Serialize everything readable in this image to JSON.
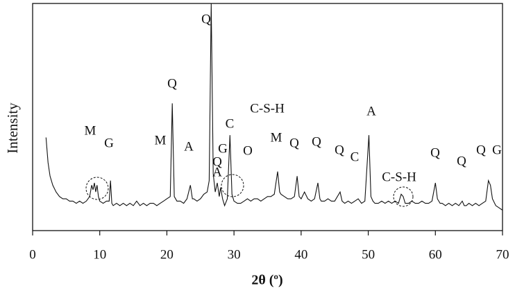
{
  "chart_data": {
    "type": "line",
    "x_label": "2θ (º)",
    "y_label": "Intensity",
    "x": [
      2,
      2.3,
      2.6,
      3,
      3.5,
      4,
      4.5,
      5,
      5.5,
      6,
      6.5,
      7,
      7.5,
      8,
      8.5,
      8.8,
      9,
      9.2,
      9.4,
      9.6,
      9.8,
      10,
      10.5,
      11,
      11.4,
      11.6,
      11.8,
      12,
      12.5,
      13,
      13.5,
      14,
      14.5,
      15,
      15.5,
      16,
      16.5,
      17,
      17.5,
      18,
      18.5,
      19,
      19.5,
      20,
      20.5,
      20.8,
      21.1,
      21.5,
      22,
      22.5,
      23,
      23.5,
      23.8,
      24,
      24.5,
      25,
      25.5,
      26,
      26.3,
      26.6,
      26.9,
      27.2,
      27.5,
      27.8,
      28,
      28.3,
      28.6,
      29,
      29.4,
      29.7,
      30,
      30.5,
      31,
      31.5,
      32,
      32.5,
      33,
      33.5,
      34,
      34.5,
      35,
      35.5,
      36,
      36.5,
      36.8,
      37,
      37.5,
      38,
      38.5,
      39,
      39.4,
      39.7,
      40,
      40.5,
      41,
      41.5,
      42,
      42.5,
      42.8,
      43,
      43.5,
      44,
      44.5,
      45,
      45.8,
      46.1,
      46.5,
      47,
      47.5,
      48,
      48.5,
      49,
      49.5,
      50.1,
      50.4,
      50.7,
      51,
      51.5,
      52,
      52.5,
      53,
      53.5,
      54,
      54.5,
      54.9,
      55.2,
      55.5,
      56,
      56.5,
      57,
      57.5,
      58,
      58.5,
      59,
      59.5,
      60,
      60.3,
      60.7,
      61,
      61.5,
      62,
      62.5,
      63,
      63.5,
      64,
      64.3,
      64.6,
      65,
      65.5,
      66,
      66.5,
      67,
      67.5,
      67.9,
      68.2,
      68.5,
      69,
      69.5,
      70
    ],
    "series": [
      {
        "color": "#111111",
        "values": [
          41,
          30,
          24,
          20,
          17,
          15,
          14,
          14,
          13,
          13,
          12,
          13,
          12,
          13,
          15,
          20,
          18,
          21,
          17,
          20,
          15,
          13,
          12,
          13,
          13,
          22,
          12,
          11,
          12,
          11,
          12,
          11,
          12,
          11,
          13,
          11,
          12,
          11,
          12,
          12,
          11,
          12,
          13,
          14,
          15,
          56,
          15,
          13,
          13,
          12,
          14,
          20,
          14,
          14,
          13,
          14,
          16,
          17,
          22,
          100,
          25,
          17,
          21,
          15,
          19,
          14,
          11,
          14,
          42,
          16,
          13,
          12,
          12,
          13,
          14,
          13,
          14,
          14,
          13,
          14,
          15,
          15,
          16,
          26,
          17,
          16,
          15,
          14,
          14,
          15,
          24,
          15,
          14,
          17,
          14,
          13,
          14,
          21,
          14,
          13,
          13,
          14,
          13,
          13,
          17,
          13,
          12,
          13,
          12,
          13,
          14,
          12,
          13,
          42,
          15,
          13,
          12,
          12,
          13,
          12,
          13,
          12,
          13,
          12,
          16,
          15,
          12,
          12,
          13,
          12,
          12,
          13,
          12,
          12,
          13,
          21,
          14,
          12,
          12,
          11,
          12,
          11,
          12,
          11,
          13,
          11,
          11,
          12,
          11,
          12,
          11,
          12,
          13,
          22,
          20,
          14,
          11,
          10,
          9
        ]
      }
    ],
    "xlim": [
      0,
      70
    ],
    "ylim": [
      0,
      100
    ],
    "xticks": [
      0,
      10,
      20,
      30,
      40,
      50,
      60,
      70
    ],
    "annotations": [
      "M",
      "G",
      "M",
      "Q",
      "A",
      "Q",
      "Q",
      "A",
      "G",
      "C",
      "C-S-H",
      "O",
      "M",
      "Q",
      "Q",
      "Q",
      "C",
      "A",
      "C-S-H",
      "Q",
      "Q",
      "Q",
      "G"
    ]
  }
}
